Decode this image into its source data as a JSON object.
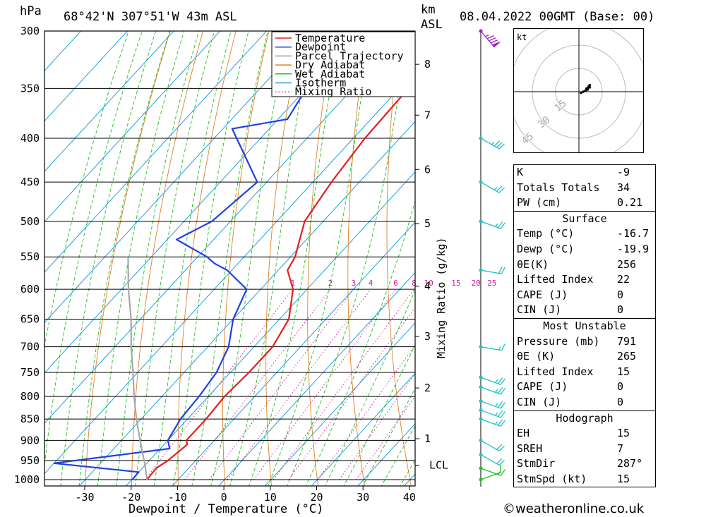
{
  "header": {
    "pressure_unit": "hPa",
    "location": "68°42'N 307°51'W 43m ASL",
    "km_unit": "km",
    "asl_unit": "ASL",
    "datetime": "08.04.2022 00GMT (Base: 00)"
  },
  "legend": [
    {
      "label": "Temperature",
      "color": "#e02020",
      "style": "solid"
    },
    {
      "label": "Dewpoint",
      "color": "#2040e0",
      "style": "solid"
    },
    {
      "label": "Parcel Trajectory",
      "color": "#a0a0a0",
      "style": "solid"
    },
    {
      "label": "Dry Adiabat",
      "color": "#e08020",
      "style": "solid"
    },
    {
      "label": "Wet Adiabat",
      "color": "#20c020",
      "style": "solid"
    },
    {
      "label": "Isotherm",
      "color": "#20a0e0",
      "style": "solid"
    },
    {
      "label": "Mixing Ratio",
      "color": "#d020a0",
      "style": "dotted"
    }
  ],
  "chart_data": {
    "type": "skew-t",
    "title": "68°42'N 307°51'W 43m ASL",
    "xlabel": "Dewpoint / Temperature (°C)",
    "ylabel": "hPa",
    "xlim": [
      -40,
      40
    ],
    "ylim": [
      1000,
      300
    ],
    "pressure_ticks": [
      "300",
      "350",
      "400",
      "450",
      "500",
      "550",
      "600",
      "650",
      "700",
      "750",
      "800",
      "850",
      "900",
      "950",
      "1000"
    ],
    "temp_ticks": [
      "-30",
      "-20",
      "-10",
      "0",
      "10",
      "20",
      "30",
      "40"
    ],
    "height_axis": {
      "label": "km ASL",
      "ticks": [
        {
          "km": "8",
          "p": 328
        },
        {
          "km": "7",
          "p": 376
        },
        {
          "km": "6",
          "p": 435
        },
        {
          "km": "5",
          "p": 503
        },
        {
          "km": "4",
          "p": 595
        },
        {
          "km": "3",
          "p": 681
        },
        {
          "km": "2",
          "p": 782
        },
        {
          "km": "1",
          "p": 896
        }
      ],
      "lcl_label": "LCL",
      "lcl_p": 962
    },
    "mixing_ratio": {
      "label": "Mixing Ratio (g/kg)",
      "values": [
        "1",
        "2",
        "3",
        "4",
        "6",
        "8",
        "10",
        "15",
        "20",
        "25"
      ]
    },
    "series": [
      {
        "name": "Temperature",
        "points": [
          [
            300,
            -35
          ],
          [
            320,
            -36.5
          ],
          [
            350,
            -38
          ],
          [
            400,
            -37.5
          ],
          [
            450,
            -36
          ],
          [
            500,
            -34
          ],
          [
            550,
            -29
          ],
          [
            570,
            -28
          ],
          [
            600,
            -23
          ],
          [
            650,
            -18
          ],
          [
            700,
            -16
          ],
          [
            750,
            -16
          ],
          [
            800,
            -16.5
          ],
          [
            850,
            -16
          ],
          [
            900,
            -16
          ],
          [
            910,
            -15
          ],
          [
            950,
            -16
          ],
          [
            970,
            -17
          ],
          [
            1000,
            -16.7
          ]
        ]
      },
      {
        "name": "Dewpoint",
        "points": [
          [
            300,
            -66
          ],
          [
            320,
            -62
          ],
          [
            350,
            -60
          ],
          [
            380,
            -58
          ],
          [
            390,
            -68
          ],
          [
            450,
            -52
          ],
          [
            500,
            -54
          ],
          [
            525,
            -58
          ],
          [
            550,
            -48
          ],
          [
            560,
            -45
          ],
          [
            570,
            -41
          ],
          [
            600,
            -33
          ],
          [
            650,
            -30
          ],
          [
            700,
            -25.5
          ],
          [
            750,
            -23
          ],
          [
            800,
            -22
          ],
          [
            850,
            -21.5
          ],
          [
            900,
            -20
          ],
          [
            920,
            -18
          ],
          [
            957,
            -40
          ],
          [
            980,
            -20
          ],
          [
            1000,
            -19.9
          ]
        ]
      },
      {
        "name": "Parcel Trajectory",
        "points": [
          [
            1000,
            -16.7
          ],
          [
            962,
            -20
          ],
          [
            900,
            -26
          ],
          [
            850,
            -31
          ],
          [
            800,
            -36
          ],
          [
            750,
            -41
          ],
          [
            700,
            -46.5
          ],
          [
            650,
            -52
          ],
          [
            600,
            -58.5
          ],
          [
            550,
            -65
          ]
        ]
      }
    ],
    "wind_barbs": [
      {
        "p": 300,
        "dir": 320,
        "speed_kt": 95
      },
      {
        "p": 400,
        "dir": 300,
        "speed_kt": 35
      },
      {
        "p": 450,
        "dir": 300,
        "speed_kt": 25
      },
      {
        "p": 500,
        "dir": 290,
        "speed_kt": 25
      },
      {
        "p": 570,
        "dir": 280,
        "speed_kt": 20
      },
      {
        "p": 700,
        "dir": 280,
        "speed_kt": 15
      },
      {
        "p": 760,
        "dir": 290,
        "speed_kt": 25
      },
      {
        "p": 780,
        "dir": 290,
        "speed_kt": 25
      },
      {
        "p": 810,
        "dir": 290,
        "speed_kt": 25
      },
      {
        "p": 830,
        "dir": 290,
        "speed_kt": 25
      },
      {
        "p": 850,
        "dir": 290,
        "speed_kt": 25
      },
      {
        "p": 900,
        "dir": 300,
        "speed_kt": 20
      },
      {
        "p": 935,
        "dir": 300,
        "speed_kt": 20
      },
      {
        "p": 970,
        "dir": 290,
        "speed_kt": 15
      },
      {
        "p": 1000,
        "dir": 250,
        "speed_kt": 10
      }
    ]
  },
  "hodograph": {
    "unit": "kt",
    "rings": [
      "15",
      "30",
      "45"
    ],
    "trace": [
      [
        2,
        1
      ],
      [
        4,
        0
      ],
      [
        6,
        -1
      ],
      [
        7,
        -3
      ],
      [
        9,
        -4
      ],
      [
        8,
        -2
      ],
      [
        9,
        -5
      ],
      [
        10,
        -6
      ],
      [
        10,
        -4
      ]
    ]
  },
  "indices": {
    "top": [
      {
        "key": "K",
        "value": "-9"
      },
      {
        "key": "Totals Totals",
        "value": "34"
      },
      {
        "key": "PW (cm)",
        "value": "0.21"
      }
    ],
    "surface": {
      "title": "Surface",
      "rows": [
        {
          "key": "Temp (°C)",
          "value": "-16.7"
        },
        {
          "key": "Dewp (°C)",
          "value": "-19.9"
        },
        {
          "key": "θE(K)",
          "value": "256"
        },
        {
          "key": "Lifted Index",
          "value": "22"
        },
        {
          "key": "CAPE (J)",
          "value": "0"
        },
        {
          "key": "CIN (J)",
          "value": "0"
        }
      ]
    },
    "most_unstable": {
      "title": "Most Unstable",
      "rows": [
        {
          "key": "Pressure (mb)",
          "value": "791"
        },
        {
          "key": "θE (K)",
          "value": "265"
        },
        {
          "key": "Lifted Index",
          "value": "15"
        },
        {
          "key": "CAPE (J)",
          "value": "0"
        },
        {
          "key": "CIN (J)",
          "value": "0"
        }
      ]
    },
    "hodograph": {
      "title": "Hodograph",
      "rows": [
        {
          "key": "EH",
          "value": "15"
        },
        {
          "key": "SREH",
          "value": "7"
        },
        {
          "key": "StmDir",
          "value": "287°"
        },
        {
          "key": "StmSpd (kt)",
          "value": "15"
        }
      ]
    }
  },
  "footer": {
    "copyright": "©weatheronline.co.uk"
  },
  "colors": {
    "temperature": "#e02020",
    "dewpoint": "#2040e0",
    "parcel": "#a8a8a8",
    "dry_adiabat": "#e08020",
    "wet_adiabat": "#20c020",
    "isotherm": "#20a0e0",
    "mixing_ratio": "#d020a0",
    "barb": "#20c0c0",
    "barb_high": "#a020c0"
  }
}
